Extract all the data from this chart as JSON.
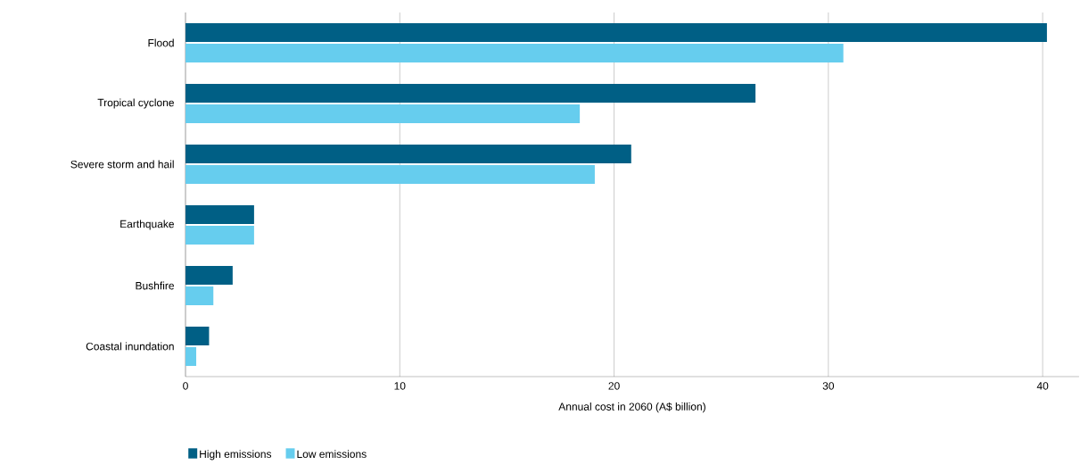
{
  "chart_data": {
    "type": "bar",
    "orientation": "horizontal",
    "xlabel": "Annual cost in 2060 (A$ billion)",
    "categories": [
      "Flood",
      "Tropical cyclone",
      "Severe storm and hail",
      "Earthquake",
      "Bushfire",
      "Coastal inundation"
    ],
    "series": [
      {
        "name": "High emissions",
        "color": "#005f85",
        "values": [
          40.2,
          26.6,
          20.8,
          3.2,
          2.2,
          1.1
        ]
      },
      {
        "name": "Low emissions",
        "color": "#66cdee",
        "values": [
          30.7,
          18.4,
          19.1,
          3.2,
          1.3,
          0.5
        ]
      }
    ],
    "xlim": [
      0,
      41.7
    ],
    "xticks": [
      0,
      10,
      20,
      30,
      40
    ],
    "grid": "x",
    "legend": "bottom left"
  }
}
